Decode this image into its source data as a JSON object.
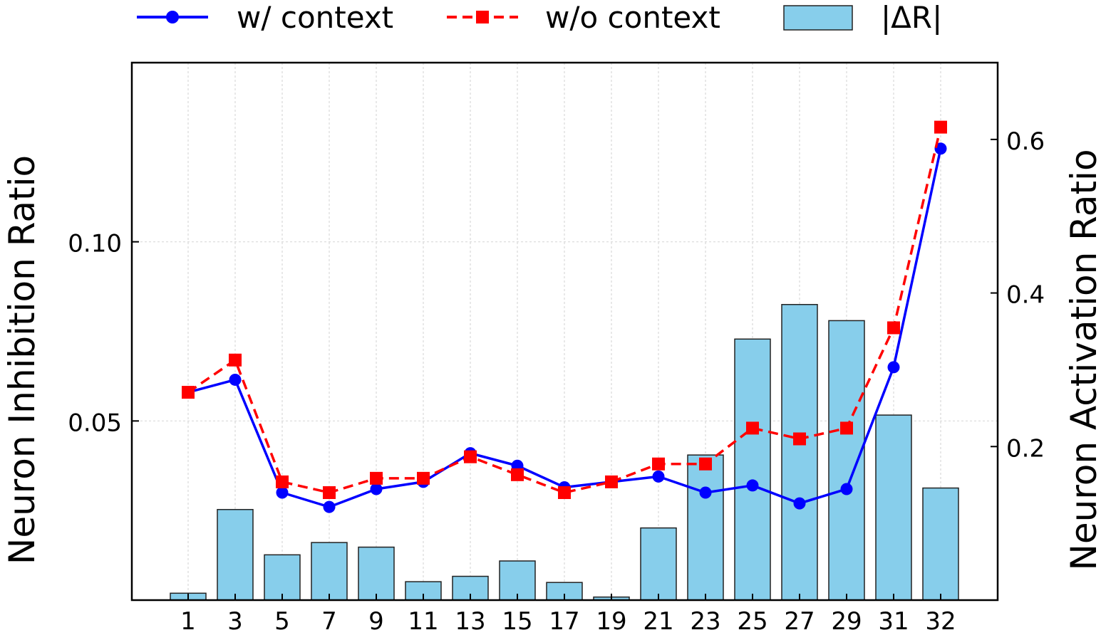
{
  "chart_data": {
    "type": "bar+line",
    "categories": [
      "1",
      "3",
      "5",
      "7",
      "9",
      "11",
      "13",
      "15",
      "17",
      "19",
      "21",
      "23",
      "25",
      "27",
      "29",
      "31",
      "32"
    ],
    "left_axis": {
      "label": "Neuron Inhibition Ratio",
      "ylim": [
        0.0,
        0.15
      ],
      "ticks": [
        0.05,
        0.1
      ],
      "tick_labels": [
        "0.05",
        "0.10"
      ]
    },
    "right_axis": {
      "label": "Neuron Activation Ratio",
      "ylim": [
        0.0,
        0.7
      ],
      "ticks": [
        0.2,
        0.4,
        0.6
      ],
      "tick_labels": [
        "0.2",
        "0.4",
        "0.6"
      ]
    },
    "series": [
      {
        "name": "w/ context",
        "kind": "line",
        "axis": "left",
        "color": "#0000ff",
        "marker": "circle",
        "dash": "solid",
        "values": [
          0.058,
          0.0615,
          0.03,
          0.026,
          0.031,
          0.033,
          0.041,
          0.0375,
          0.0315,
          0.033,
          0.0345,
          0.03,
          0.032,
          0.027,
          0.031,
          0.065,
          0.126
        ]
      },
      {
        "name": "w/o context",
        "kind": "line",
        "axis": "left",
        "color": "#ff0000",
        "marker": "square",
        "dash": "dashed",
        "values": [
          0.058,
          0.067,
          0.033,
          0.03,
          0.034,
          0.034,
          0.04,
          0.035,
          0.03,
          0.033,
          0.038,
          0.038,
          0.048,
          0.045,
          0.048,
          0.076,
          0.132
        ]
      },
      {
        "name": "|ΔR|",
        "kind": "bar",
        "axis": "right",
        "color": "#87ceeb",
        "values": [
          0.009,
          0.118,
          0.059,
          0.075,
          0.069,
          0.024,
          0.031,
          0.051,
          0.023,
          0.004,
          0.094,
          0.189,
          0.34,
          0.385,
          0.364,
          0.241,
          0.146
        ]
      }
    ],
    "grid": true,
    "legend_position": "top, outside"
  }
}
